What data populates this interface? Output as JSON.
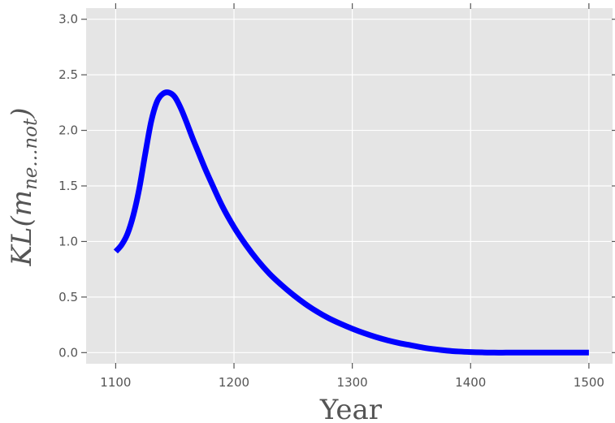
{
  "chart_data": {
    "type": "line",
    "title": "",
    "xlabel": "Year",
    "ylabel": "KL(m_{ne...not})",
    "ylabel_parts": {
      "main": "KL(m",
      "subscript": "ne...not",
      "close": ")"
    },
    "xlim": [
      1075,
      1520
    ],
    "ylim": [
      -0.1,
      3.1
    ],
    "xticks": [
      1100,
      1200,
      1300,
      1400,
      1500
    ],
    "yticks": [
      0.0,
      0.5,
      1.0,
      1.5,
      2.0,
      2.5,
      3.0
    ],
    "xtick_labels": [
      "1100",
      "1200",
      "1300",
      "1400",
      "1500"
    ],
    "ytick_labels": [
      "0.0",
      "0.5",
      "1.0",
      "1.5",
      "2.0",
      "2.5",
      "3.0"
    ],
    "grid": true,
    "background": "#e5e5e5",
    "grid_color": "#ffffff",
    "series": [
      {
        "color": "#0000ff",
        "x": [
          1100,
          1105,
          1110,
          1115,
          1120,
          1125,
          1130,
          1135,
          1140,
          1145,
          1150,
          1155,
          1160,
          1165,
          1170,
          1175,
          1180,
          1190,
          1200,
          1210,
          1220,
          1230,
          1240,
          1250,
          1260,
          1270,
          1280,
          1290,
          1300,
          1310,
          1320,
          1330,
          1340,
          1350,
          1360,
          1370,
          1380,
          1390,
          1400,
          1410,
          1420,
          1430,
          1440,
          1460,
          1480,
          1500
        ],
        "y": [
          0.91,
          0.97,
          1.07,
          1.24,
          1.48,
          1.79,
          2.08,
          2.26,
          2.33,
          2.34,
          2.3,
          2.2,
          2.07,
          1.93,
          1.8,
          1.67,
          1.55,
          1.32,
          1.13,
          0.97,
          0.83,
          0.71,
          0.61,
          0.52,
          0.44,
          0.37,
          0.31,
          0.26,
          0.215,
          0.175,
          0.14,
          0.11,
          0.085,
          0.065,
          0.045,
          0.03,
          0.018,
          0.01,
          0.005,
          0.002,
          0.0,
          0.0,
          0.0,
          0.0,
          0.0,
          0.0
        ]
      }
    ]
  }
}
